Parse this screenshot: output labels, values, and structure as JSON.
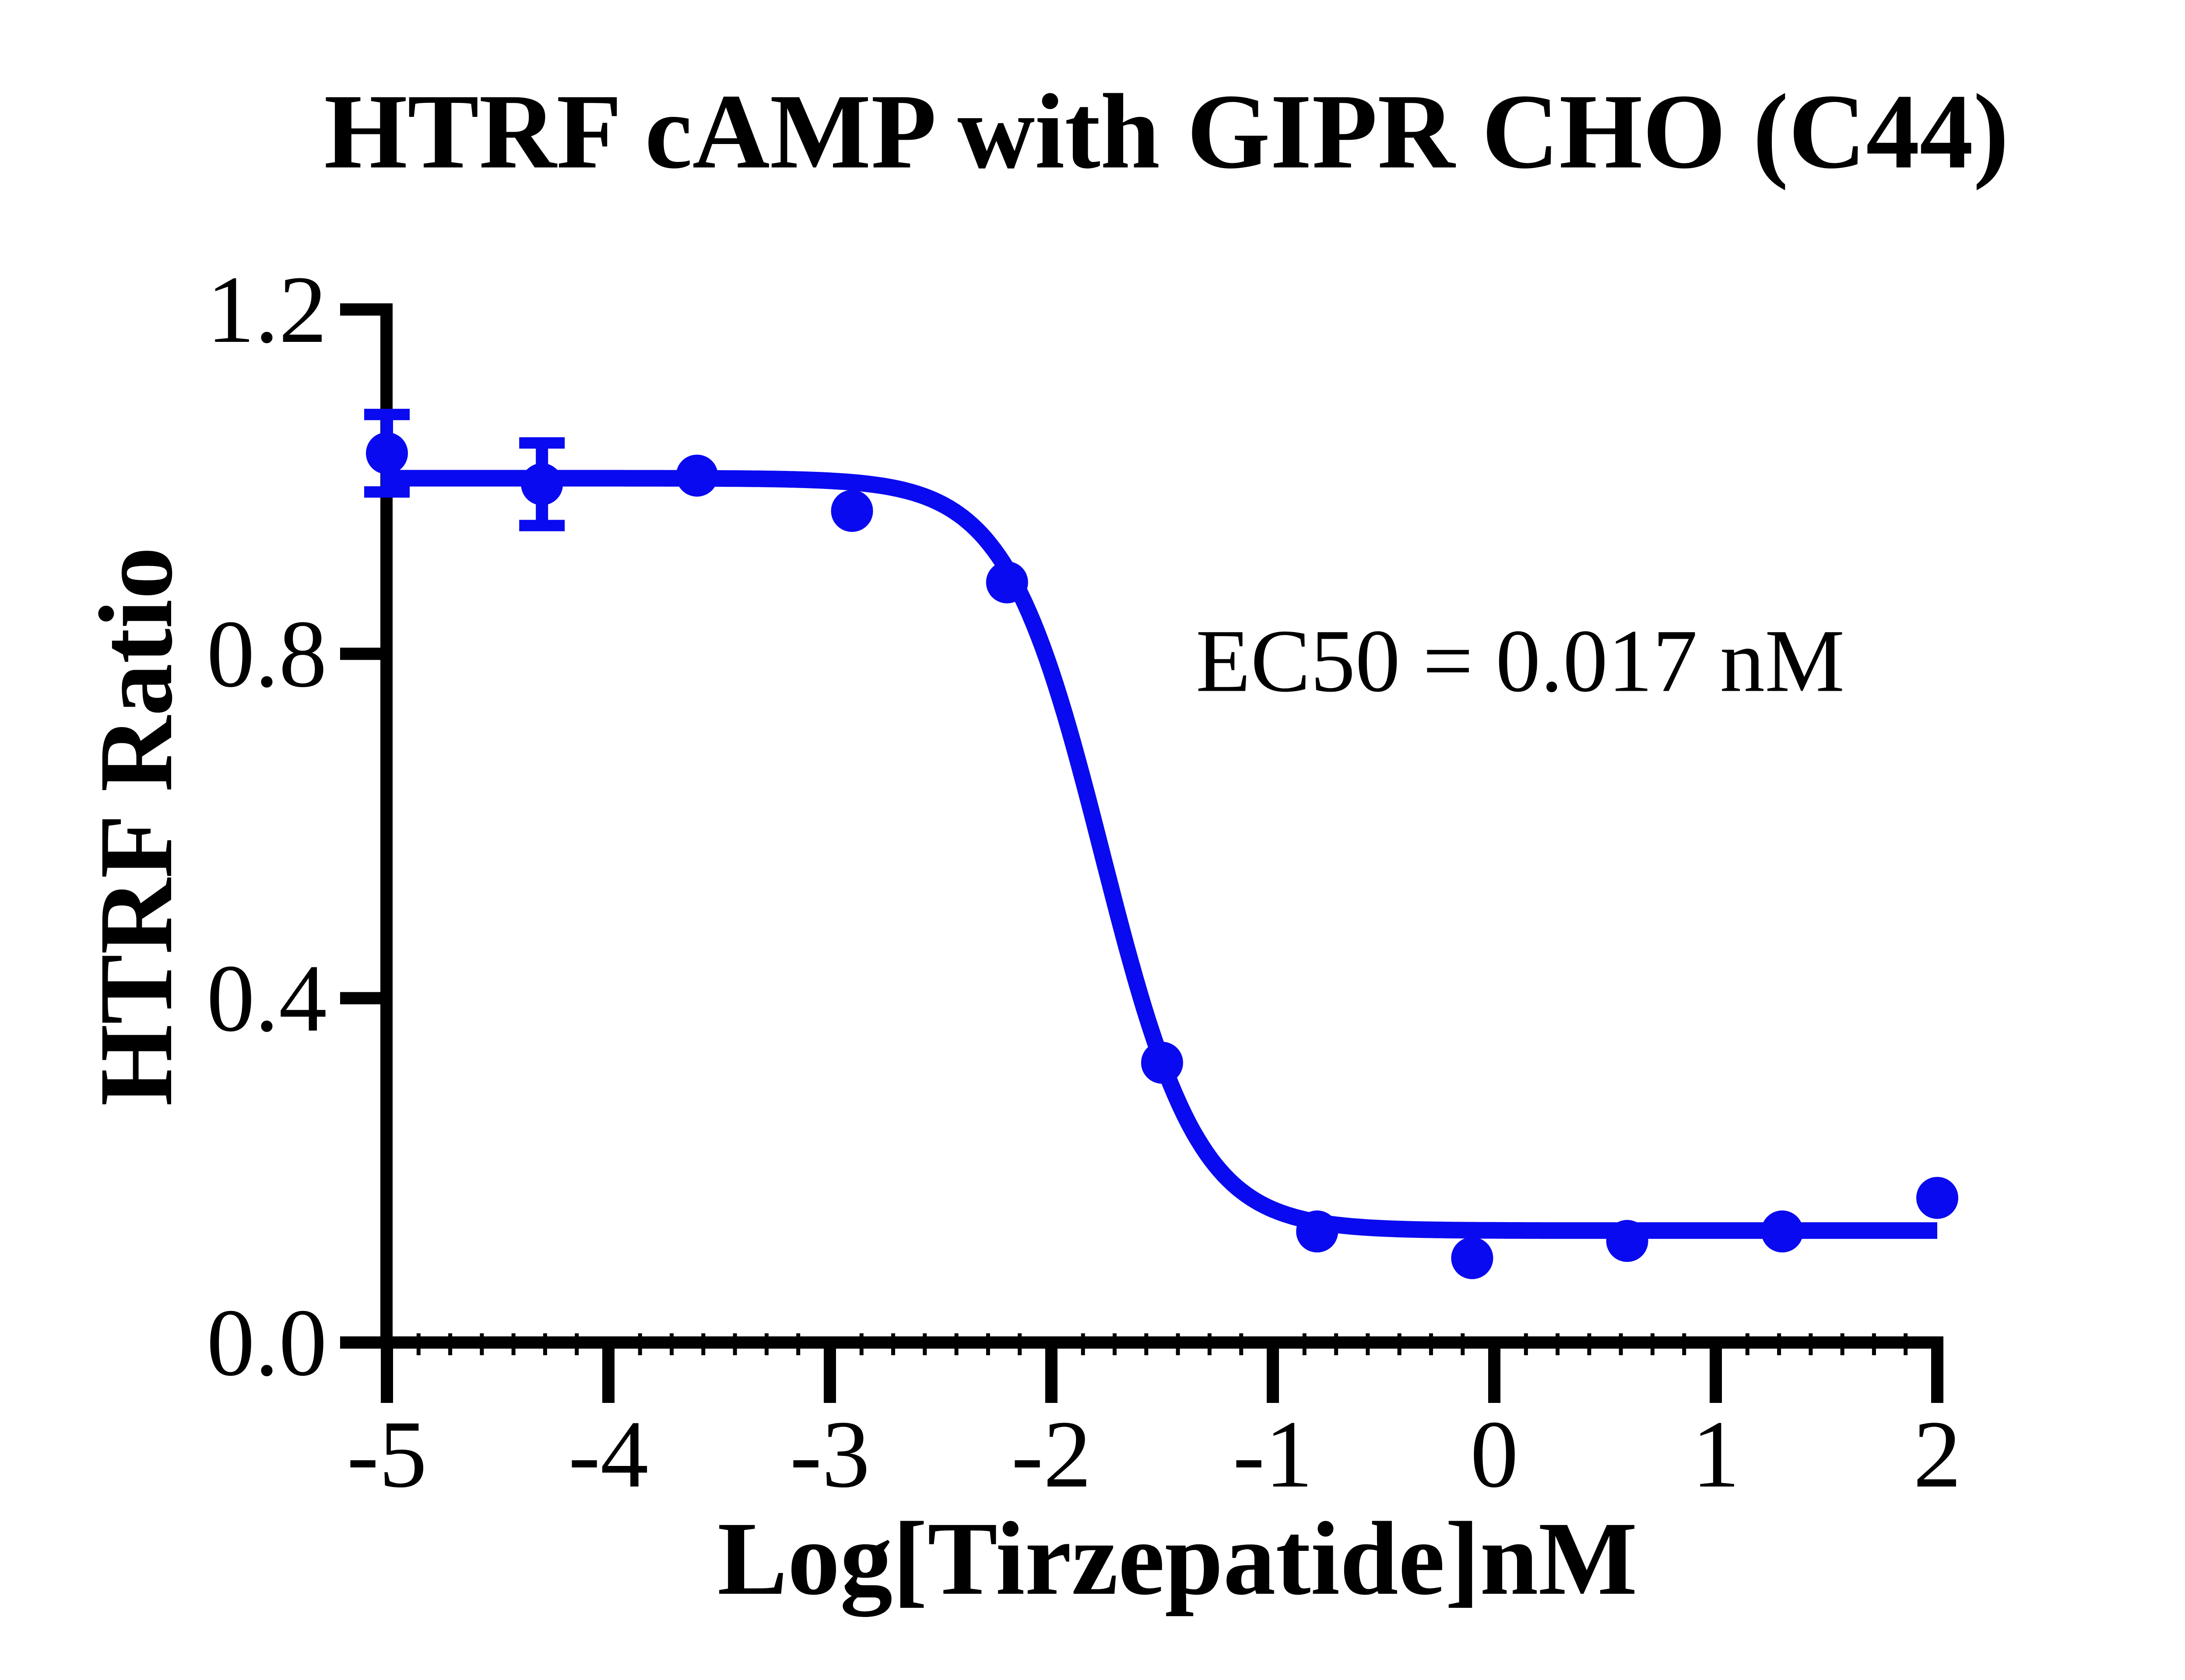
{
  "page": {
    "background": "#FFFFFF"
  },
  "chart_data": {
    "type": "scatter-line",
    "title": "HTRF cAMP with GIPR CHO (C44)",
    "xlabel": "Log[Tirzepatide]nM",
    "ylabel": "HTRF Ratio",
    "xlim": [
      -5,
      2
    ],
    "ylim": [
      0.0,
      1.2
    ],
    "x_ticks": [
      -5,
      -4,
      -3,
      -2,
      -1,
      0,
      1,
      2
    ],
    "x_tick_labels": [
      "-5",
      "-4",
      "-3",
      "-2",
      "-1",
      "0",
      "1",
      "2"
    ],
    "y_ticks": [
      0.0,
      0.4,
      0.8,
      1.2
    ],
    "y_tick_labels": [
      "0.0",
      "0.4",
      "0.8",
      "1.2"
    ],
    "x_minor_divisions": 7,
    "grid": false,
    "legend": null,
    "colors": {
      "series": "#0A0AF0",
      "axis": "#000000",
      "text": "#000000",
      "background": "#FFFFFF"
    },
    "annotation": {
      "text": "EC50 = 0.017 nM",
      "x": -1.35,
      "y": 0.792
    },
    "series": [
      {
        "name": "Tirzepatide",
        "marker": "circle",
        "color": "#0A0AF0",
        "points": [
          {
            "x": -5.0,
            "y": 1.033,
            "err": 0.045
          },
          {
            "x": -4.3,
            "y": 0.997,
            "err": 0.048
          },
          {
            "x": -3.6,
            "y": 1.007,
            "err": null
          },
          {
            "x": -2.9,
            "y": 0.966,
            "err": null
          },
          {
            "x": -2.2,
            "y": 0.883,
            "err": null
          },
          {
            "x": -1.5,
            "y": 0.325,
            "err": null
          },
          {
            "x": -0.8,
            "y": 0.129,
            "err": null
          },
          {
            "x": -0.1,
            "y": 0.098,
            "err": null
          },
          {
            "x": 0.6,
            "y": 0.118,
            "err": null
          },
          {
            "x": 1.3,
            "y": 0.129,
            "err": null
          },
          {
            "x": 2.0,
            "y": 0.168,
            "err": null
          }
        ],
        "fit": {
          "model": "4PL-sigmoid",
          "top": 1.004,
          "bottom": 0.13,
          "log_ec50": -1.7696,
          "hill_slope": 2.0,
          "ec50": "0.017 nM"
        }
      }
    ]
  }
}
